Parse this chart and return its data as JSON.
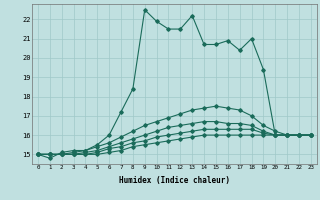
{
  "xlabel": "Humidex (Indice chaleur)",
  "background_color": "#c0e0e0",
  "grid_color": "#a0c8c8",
  "line_color": "#1a6b5a",
  "xlim": [
    -0.5,
    23.5
  ],
  "ylim": [
    14.5,
    22.8
  ],
  "yticks": [
    15,
    16,
    17,
    18,
    19,
    20,
    21,
    22
  ],
  "xticks": [
    0,
    1,
    2,
    3,
    4,
    5,
    6,
    7,
    8,
    9,
    10,
    11,
    12,
    13,
    14,
    15,
    16,
    17,
    18,
    19,
    20,
    21,
    22,
    23
  ],
  "lines": [
    [
      15.0,
      14.8,
      15.1,
      15.2,
      15.2,
      15.5,
      16.0,
      17.2,
      18.4,
      22.5,
      21.9,
      21.5,
      21.5,
      22.2,
      20.7,
      20.7,
      20.9,
      20.4,
      21.0,
      19.4,
      16.0,
      16.0,
      16.0,
      16.0
    ],
    [
      15.0,
      15.0,
      15.0,
      15.1,
      15.2,
      15.4,
      15.6,
      15.9,
      16.2,
      16.5,
      16.7,
      16.9,
      17.1,
      17.3,
      17.4,
      17.5,
      17.4,
      17.3,
      17.0,
      16.5,
      16.2,
      16.0,
      16.0,
      16.0
    ],
    [
      15.0,
      15.0,
      15.0,
      15.0,
      15.1,
      15.2,
      15.4,
      15.6,
      15.8,
      16.0,
      16.2,
      16.4,
      16.5,
      16.6,
      16.7,
      16.7,
      16.6,
      16.6,
      16.5,
      16.2,
      16.0,
      16.0,
      16.0,
      16.0
    ],
    [
      15.0,
      15.0,
      15.0,
      15.0,
      15.0,
      15.1,
      15.3,
      15.4,
      15.6,
      15.7,
      15.9,
      16.0,
      16.1,
      16.2,
      16.3,
      16.3,
      16.3,
      16.3,
      16.3,
      16.1,
      16.0,
      16.0,
      16.0,
      16.0
    ],
    [
      15.0,
      15.0,
      15.0,
      15.0,
      15.0,
      15.0,
      15.1,
      15.2,
      15.4,
      15.5,
      15.6,
      15.7,
      15.8,
      15.9,
      16.0,
      16.0,
      16.0,
      16.0,
      16.0,
      16.0,
      16.0,
      16.0,
      16.0,
      16.0
    ]
  ]
}
